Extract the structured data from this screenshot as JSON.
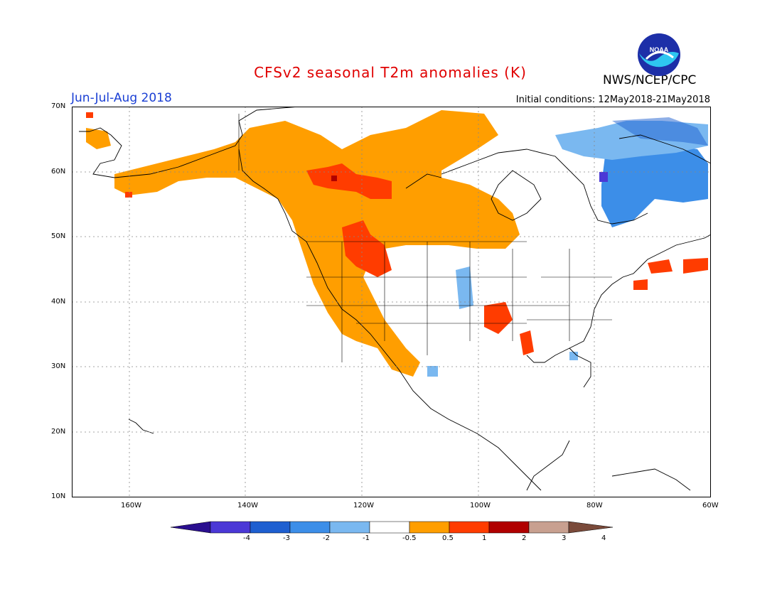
{
  "header": {
    "title": "CFSv2 seasonal T2m anomalies (K)",
    "period": "Jun-Jul-Aug 2018",
    "initial_conditions": "Initial conditions: 12May2018-21May2018",
    "agency": "NWS/NCEP/CPC",
    "logo_text": "NOAA"
  },
  "map": {
    "lat_labels": [
      "70N",
      "60N",
      "50N",
      "40N",
      "30N",
      "20N",
      "10N"
    ],
    "lon_labels": [
      "160W",
      "140W",
      "120W",
      "100W",
      "80W",
      "60W"
    ],
    "lon_range": [
      -170,
      -60
    ],
    "lat_range": [
      10,
      70
    ]
  },
  "legend": {
    "labels": [
      "-4",
      "-3",
      "-2",
      "-1",
      "-0.5",
      "0.5",
      "1",
      "2",
      "3",
      "4"
    ],
    "colors": [
      "#2a0f8f",
      "#4b38d6",
      "#1e5fd0",
      "#3c8ee8",
      "#7ab8f0",
      "#ffffff",
      "#ff9e00",
      "#ff3c00",
      "#b00000",
      "#c8a090",
      "#7a4a3a"
    ]
  },
  "colors": {
    "land_outline": "#000000",
    "grid": "#888888"
  }
}
